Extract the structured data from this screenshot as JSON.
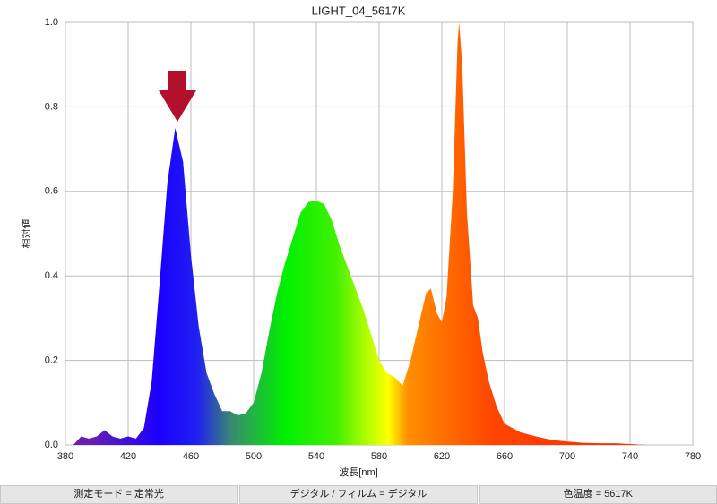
{
  "chart_data": {
    "type": "area",
    "title": "LIGHT_04_5617K",
    "x_label": "波長[nm]",
    "y_label": "相対値",
    "x": [
      385,
      390,
      395,
      400,
      405,
      410,
      415,
      420,
      425,
      430,
      435,
      440,
      445,
      450,
      455,
      460,
      465,
      470,
      475,
      480,
      485,
      490,
      495,
      500,
      505,
      510,
      515,
      520,
      525,
      530,
      535,
      540,
      545,
      550,
      555,
      560,
      565,
      570,
      575,
      580,
      585,
      590,
      595,
      600,
      605,
      610,
      613,
      617,
      620,
      623,
      627,
      630,
      631,
      633,
      636,
      640,
      643,
      646,
      650,
      655,
      660,
      670,
      680,
      690,
      700,
      710,
      720,
      730,
      740,
      750
    ],
    "values": [
      0,
      0.02,
      0.015,
      0.02,
      0.035,
      0.02,
      0.015,
      0.02,
      0.015,
      0.04,
      0.15,
      0.38,
      0.62,
      0.75,
      0.67,
      0.45,
      0.28,
      0.17,
      0.12,
      0.08,
      0.08,
      0.07,
      0.075,
      0.1,
      0.17,
      0.27,
      0.36,
      0.43,
      0.49,
      0.55,
      0.575,
      0.578,
      0.57,
      0.53,
      0.47,
      0.42,
      0.37,
      0.32,
      0.26,
      0.2,
      0.17,
      0.16,
      0.14,
      0.2,
      0.28,
      0.36,
      0.37,
      0.31,
      0.29,
      0.35,
      0.6,
      0.95,
      1.0,
      0.9,
      0.55,
      0.33,
      0.3,
      0.22,
      0.15,
      0.09,
      0.05,
      0.03,
      0.02,
      0.012,
      0.008,
      0.005,
      0.004,
      0.004,
      0.002,
      0
    ],
    "xlim": [
      380,
      780
    ],
    "xticks": [
      380,
      420,
      460,
      500,
      540,
      580,
      620,
      660,
      700,
      740,
      780
    ],
    "ylim": [
      0,
      1
    ],
    "yticks": [
      {
        "value": 0,
        "label": "0.0"
      },
      0.2,
      0.4,
      0.6,
      0.8,
      {
        "value": 1,
        "label": "1.0"
      }
    ],
    "grid": true
  },
  "footer": [
    "測定モード = 定常光",
    "デジタル / フィルム = デジタル",
    "色温度 = 5617K"
  ]
}
